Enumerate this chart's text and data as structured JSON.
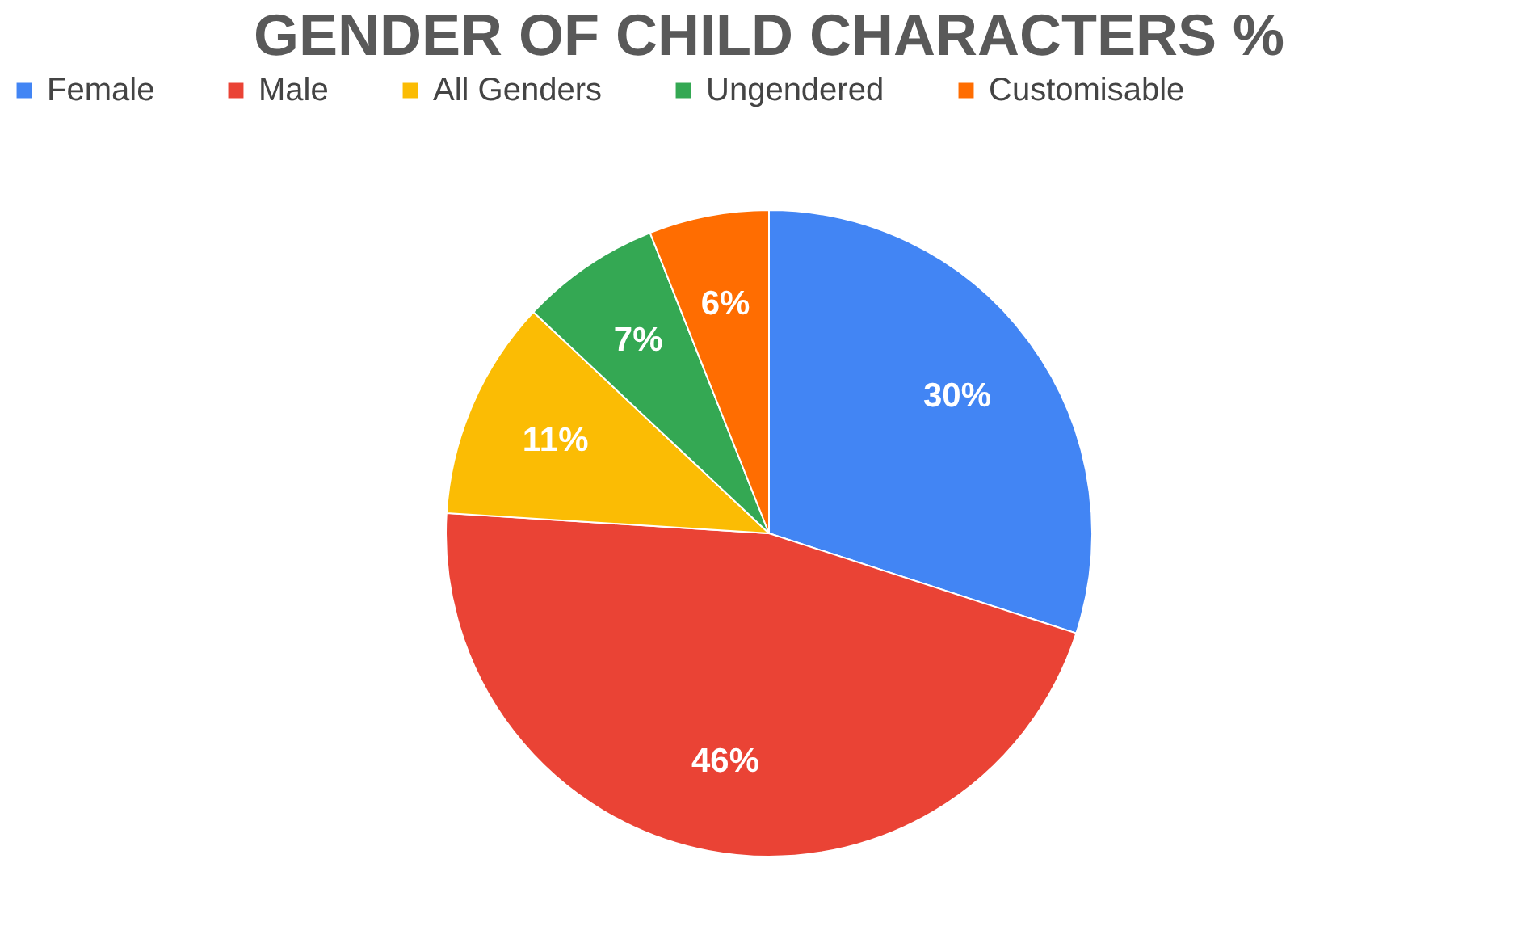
{
  "chart_data": {
    "type": "pie",
    "title": "GENDER OF CHILD CHARACTERS %",
    "categories": [
      "Female",
      "Male",
      "All Genders",
      "Ungendered",
      "Customisable"
    ],
    "values": [
      30,
      46,
      11,
      7,
      6
    ],
    "colors": [
      "#4285f4",
      "#ea4335",
      "#fbbc04",
      "#34a853",
      "#ff6d01"
    ],
    "value_labels": [
      "30%",
      "46%",
      "11%",
      "7%",
      "6%"
    ],
    "legend": "top"
  }
}
